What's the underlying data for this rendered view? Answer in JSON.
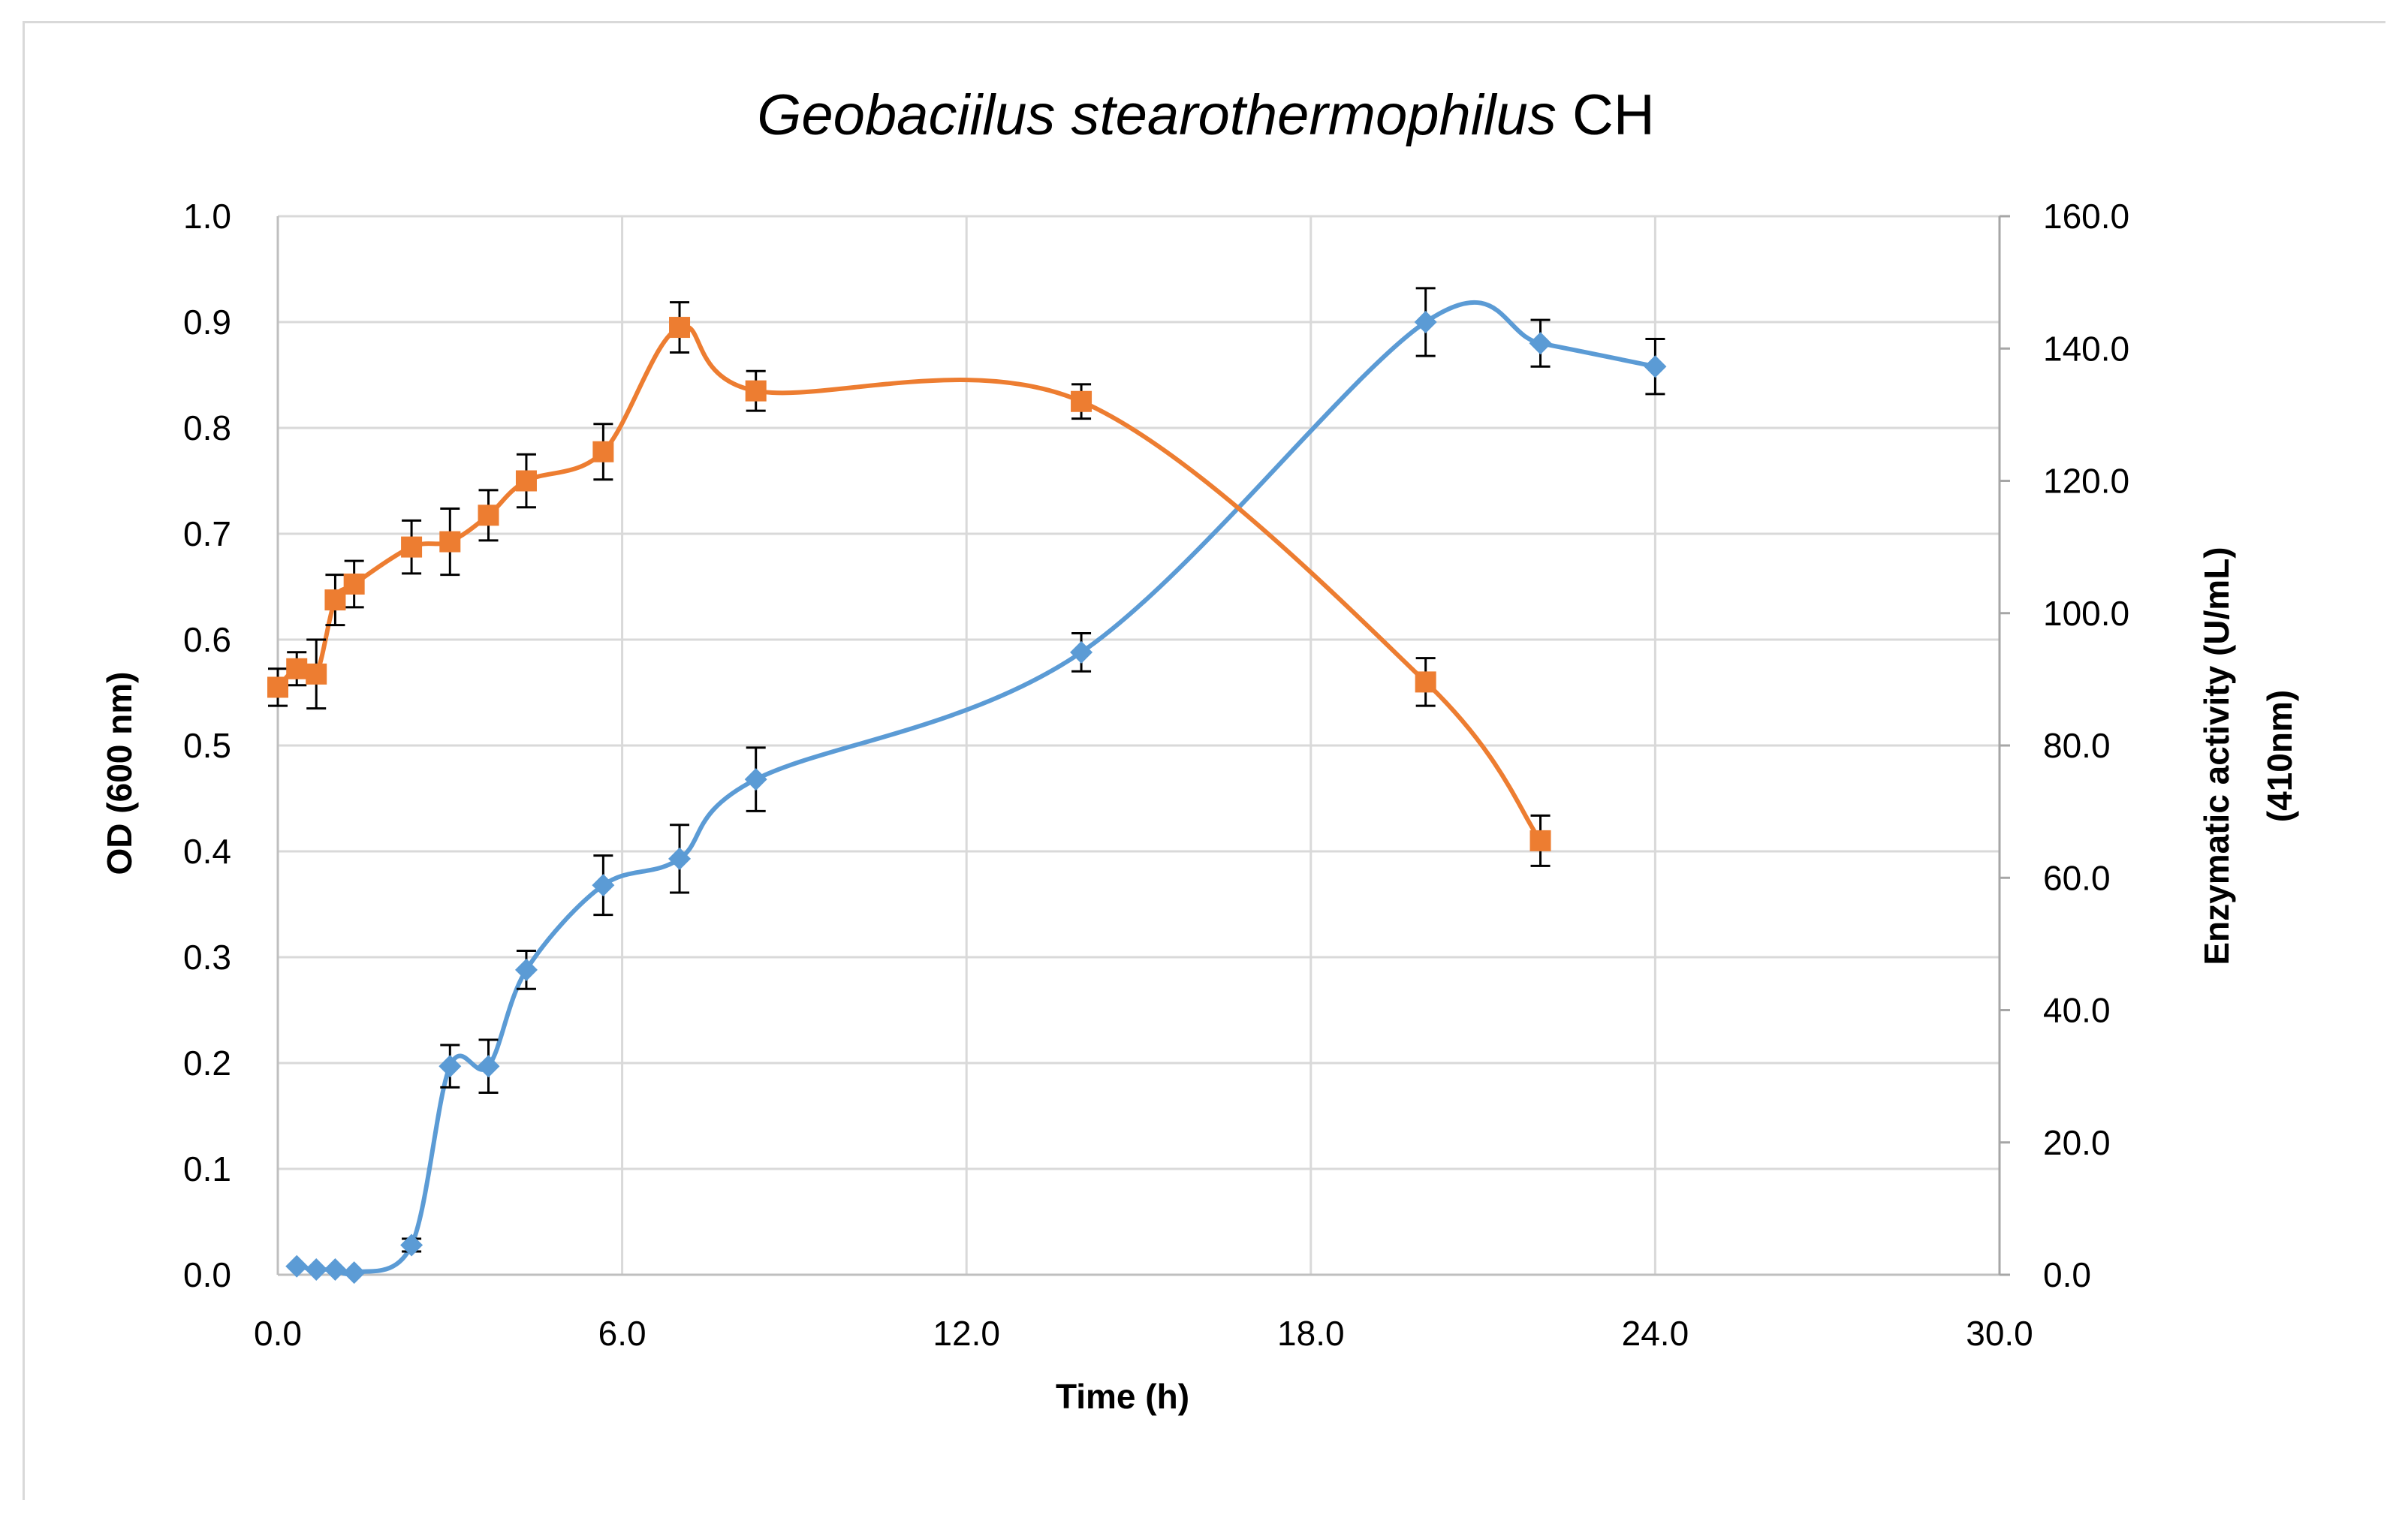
{
  "chart_data": {
    "type": "line",
    "title_italic": "Geobaciilus stearothermophilus",
    "title_suffix": " CH",
    "xlabel": "Time (h)",
    "ylabel": "OD (600 nm)",
    "y2label_line1": "Enzymatic activity (U/mL)",
    "y2label_line2": "(410nm)",
    "xlim": [
      0,
      30
    ],
    "ylim": [
      0,
      1.0
    ],
    "y2lim": [
      0,
      160
    ],
    "x_ticks": [
      "0.0",
      "6.0",
      "12.0",
      "18.0",
      "24.0",
      "30.0"
    ],
    "y_ticks": [
      "0.0",
      "0.1",
      "0.2",
      "0.3",
      "0.4",
      "0.5",
      "0.6",
      "0.7",
      "0.8",
      "0.9",
      "1.0"
    ],
    "y2_ticks": [
      "0.0",
      "20.0",
      "40.0",
      "60.0",
      "80.0",
      "100.0",
      "120.0",
      "140.0",
      "160.0"
    ],
    "grid": true,
    "smooth": true,
    "series": [
      {
        "axis": "left",
        "color": "#5b9bd5",
        "marker": "diamond",
        "points": [
          {
            "x": 0.33,
            "y": 0.008,
            "err": 0
          },
          {
            "x": 0.67,
            "y": 0.005,
            "err": 0
          },
          {
            "x": 1.0,
            "y": 0.005,
            "err": 0
          },
          {
            "x": 1.33,
            "y": 0.002,
            "err": 0
          },
          {
            "x": 2.33,
            "y": 0.028,
            "err": 0.006
          },
          {
            "x": 3.0,
            "y": 0.197,
            "err": 0.02
          },
          {
            "x": 3.67,
            "y": 0.197,
            "err": 0.025
          },
          {
            "x": 4.33,
            "y": 0.288,
            "err": 0.018
          },
          {
            "x": 5.67,
            "y": 0.368,
            "err": 0.028
          },
          {
            "x": 7.0,
            "y": 0.393,
            "err": 0.032
          },
          {
            "x": 8.33,
            "y": 0.468,
            "err": 0.03
          },
          {
            "x": 14.0,
            "y": 0.588,
            "err": 0.018
          },
          {
            "x": 20.0,
            "y": 0.9,
            "err": 0.032
          },
          {
            "x": 22.0,
            "y": 0.88,
            "err": 0.022
          },
          {
            "x": 24.0,
            "y": 0.858,
            "err": 0.026
          }
        ]
      },
      {
        "axis": "right",
        "color": "#ed7d31",
        "marker": "square",
        "points": [
          {
            "x": 0.0,
            "y": 88.8,
            "err": 2.8
          },
          {
            "x": 0.33,
            "y": 91.6,
            "err": 2.5
          },
          {
            "x": 0.67,
            "y": 90.8,
            "err": 5.2
          },
          {
            "x": 1.0,
            "y": 102.0,
            "err": 3.8
          },
          {
            "x": 1.33,
            "y": 104.4,
            "err": 3.5
          },
          {
            "x": 2.33,
            "y": 110.0,
            "err": 4.0
          },
          {
            "x": 3.0,
            "y": 110.8,
            "err": 5.0
          },
          {
            "x": 3.67,
            "y": 114.8,
            "err": 3.8
          },
          {
            "x": 4.33,
            "y": 120.0,
            "err": 4.0
          },
          {
            "x": 5.67,
            "y": 124.4,
            "err": 4.2
          },
          {
            "x": 7.0,
            "y": 143.2,
            "err": 3.8
          },
          {
            "x": 8.33,
            "y": 133.6,
            "err": 3.0
          },
          {
            "x": 14.0,
            "y": 132.0,
            "err": 2.6
          },
          {
            "x": 20.0,
            "y": 89.6,
            "err": 3.6
          },
          {
            "x": 22.0,
            "y": 65.6,
            "err": 3.8
          }
        ]
      }
    ]
  }
}
